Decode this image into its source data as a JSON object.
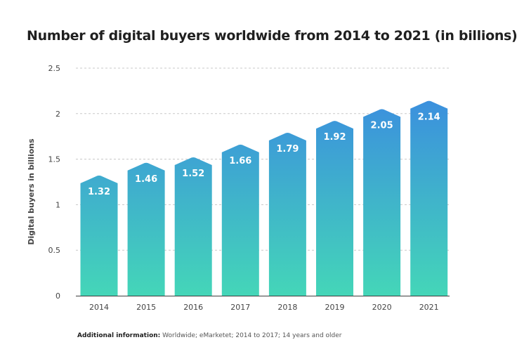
{
  "chart_data": {
    "type": "bar",
    "title": "Number of digital buyers worldwide from 2014 to 2021 (in billions)",
    "xlabel": "",
    "ylabel": "Digital buyers in billions",
    "categories": [
      "2014",
      "2015",
      "2016",
      "2017",
      "2018",
      "2019",
      "2020",
      "2021"
    ],
    "values": [
      1.32,
      1.46,
      1.52,
      1.66,
      1.79,
      1.92,
      2.05,
      2.14
    ],
    "data_labels": [
      "1.32",
      "1.46",
      "1.52",
      "1.66",
      "1.79",
      "1.92",
      "2.05",
      "2.14"
    ],
    "ylim": [
      0,
      2.5
    ],
    "yticks": [
      0,
      0.5,
      1,
      1.5,
      2,
      2.5
    ],
    "ytick_labels": [
      "0",
      "0.5",
      "1",
      "1.5",
      "2",
      "2.5"
    ],
    "grid": true,
    "legend": "none",
    "colors": {
      "bar_top": "#3b8fde",
      "bar_bottom": "#44d6b8",
      "grid": "#c8c8c8",
      "axis": "#3d3d3d",
      "label": "#ffffff"
    }
  },
  "footnote": {
    "label": "Additional information:",
    "text": " Worldwide; eMarketet; 2014 to 2017; 14 years and older"
  }
}
